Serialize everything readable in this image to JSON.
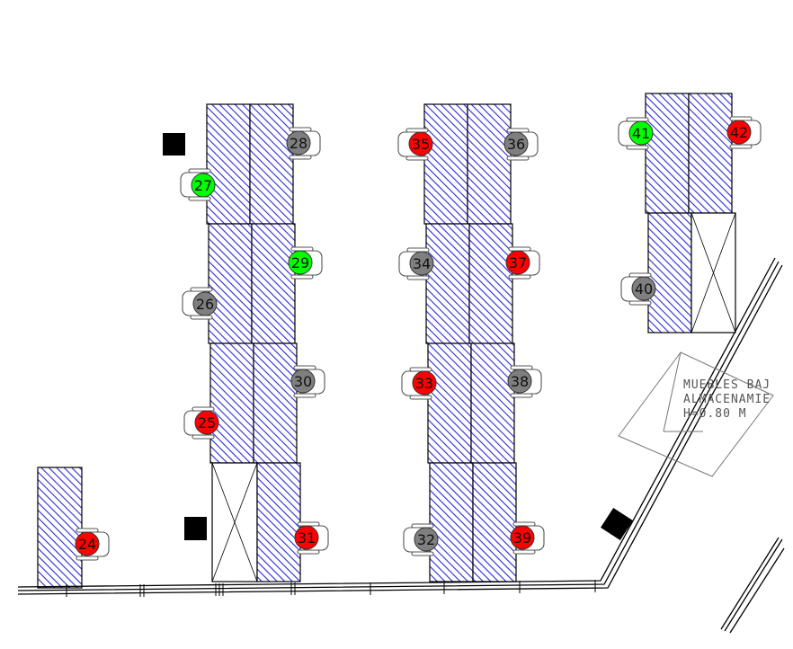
{
  "status_colors": {
    "red": "#ff0000",
    "green": "#00ff00",
    "gray": "#7f7f7f"
  },
  "desk_fill": "#2b2bd8",
  "seats": [
    {
      "id": "24",
      "status": "red"
    },
    {
      "id": "25",
      "status": "red"
    },
    {
      "id": "26",
      "status": "gray"
    },
    {
      "id": "27",
      "status": "green"
    },
    {
      "id": "28",
      "status": "gray"
    },
    {
      "id": "29",
      "status": "green"
    },
    {
      "id": "30",
      "status": "gray"
    },
    {
      "id": "31",
      "status": "red"
    },
    {
      "id": "32",
      "status": "gray"
    },
    {
      "id": "33",
      "status": "red"
    },
    {
      "id": "34",
      "status": "gray"
    },
    {
      "id": "35",
      "status": "red"
    },
    {
      "id": "36",
      "status": "gray"
    },
    {
      "id": "37",
      "status": "red"
    },
    {
      "id": "38",
      "status": "gray"
    },
    {
      "id": "39",
      "status": "red"
    },
    {
      "id": "40",
      "status": "gray"
    },
    {
      "id": "41",
      "status": "green"
    },
    {
      "id": "42",
      "status": "red"
    }
  ],
  "note": {
    "line1": "MUEBLES BAJ",
    "line2": "ALMACENAMIE",
    "line3": "H=0.80 M"
  }
}
